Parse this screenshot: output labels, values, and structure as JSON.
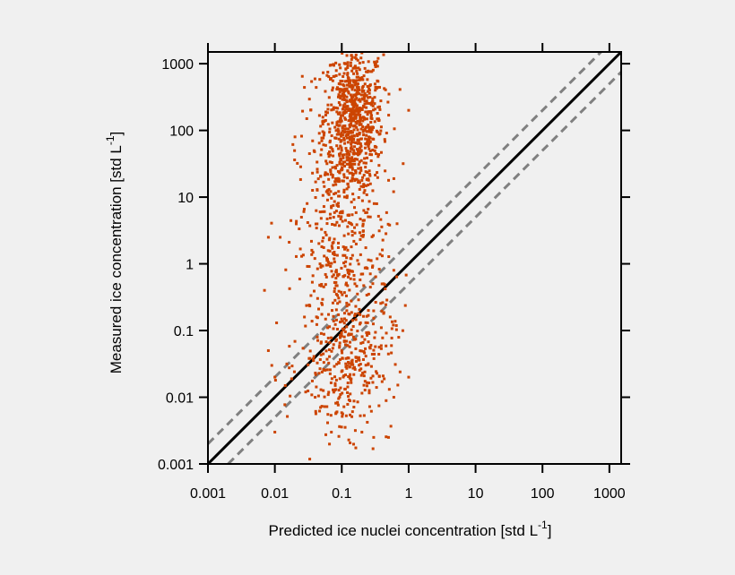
{
  "chart_data": {
    "type": "scatter",
    "title": "",
    "xlabel": "Predicted ice nuclei concentration [std L",
    "xlabel_exp": "-1",
    "xlabel_close": "]",
    "ylabel": "Measured ice concentration [std L",
    "ylabel_exp": "-1",
    "ylabel_close": "]",
    "x_scale": "log",
    "y_scale": "log",
    "xlim": [
      0.001,
      1500
    ],
    "ylim": [
      0.001,
      1500
    ],
    "x_ticks": [
      {
        "value": 0.001,
        "label": "0.001"
      },
      {
        "value": 0.01,
        "label": "0.01"
      },
      {
        "value": 0.1,
        "label": "0.1"
      },
      {
        "value": 1,
        "label": "1"
      },
      {
        "value": 10,
        "label": "10"
      },
      {
        "value": 100,
        "label": "100"
      },
      {
        "value": 1000,
        "label": "1000"
      }
    ],
    "y_ticks": [
      {
        "value": 0.001,
        "label": "0.001"
      },
      {
        "value": 0.01,
        "label": "0.01"
      },
      {
        "value": 0.1,
        "label": "0.1"
      },
      {
        "value": 1,
        "label": "1"
      },
      {
        "value": 10,
        "label": "10"
      },
      {
        "value": 100,
        "label": "100"
      },
      {
        "value": 1000,
        "label": "1000"
      }
    ],
    "grid": false,
    "reference_lines": [
      {
        "kind": "one-to-one",
        "factor": 1,
        "style": "solid",
        "color": "#000000"
      },
      {
        "kind": "factor",
        "factor": 2,
        "style": "dashed",
        "color": "#808080"
      },
      {
        "kind": "factor",
        "factor": 0.5,
        "style": "dashed",
        "color": "#808080"
      }
    ],
    "series": [
      {
        "marker_color": "#cc4400",
        "point_count": 1500,
        "clusters": [
          {
            "x_median": 0.15,
            "x_spread_decades": 0.22,
            "y_median": 150,
            "y_spread_decades": 0.55,
            "count": 720
          },
          {
            "x_median": 0.1,
            "x_spread_decades": 0.35,
            "y_median": 1.5,
            "y_spread_decades": 1.1,
            "count": 520
          },
          {
            "x_median": 0.12,
            "x_spread_decades": 0.35,
            "y_median": 0.03,
            "y_spread_decades": 0.5,
            "count": 260
          }
        ],
        "points": [
          [
            0.01,
            0.003
          ],
          [
            0.008,
            0.05
          ],
          [
            0.008,
            2.5
          ],
          [
            0.012,
            2.5
          ],
          [
            0.02,
            80
          ],
          [
            0.03,
            150
          ],
          [
            0.025,
            5
          ],
          [
            0.007,
            0.4
          ],
          [
            0.009,
            0.03
          ],
          [
            0.35,
            1200
          ],
          [
            1.0,
            0.02
          ],
          [
            1.0,
            200
          ],
          [
            0.5,
            0.0025
          ],
          [
            0.3,
            0.0025
          ],
          [
            0.2,
            0.003
          ],
          [
            0.07,
            0.003
          ],
          [
            0.6,
            0.01
          ],
          [
            0.01,
            0.02
          ],
          [
            0.04,
            0.01
          ],
          [
            0.1,
            0.05
          ],
          [
            0.15,
            0.08
          ],
          [
            0.25,
            0.2
          ],
          [
            0.4,
            0.5
          ],
          [
            0.6,
            0.8
          ],
          [
            0.08,
            0.015
          ]
        ]
      }
    ]
  }
}
